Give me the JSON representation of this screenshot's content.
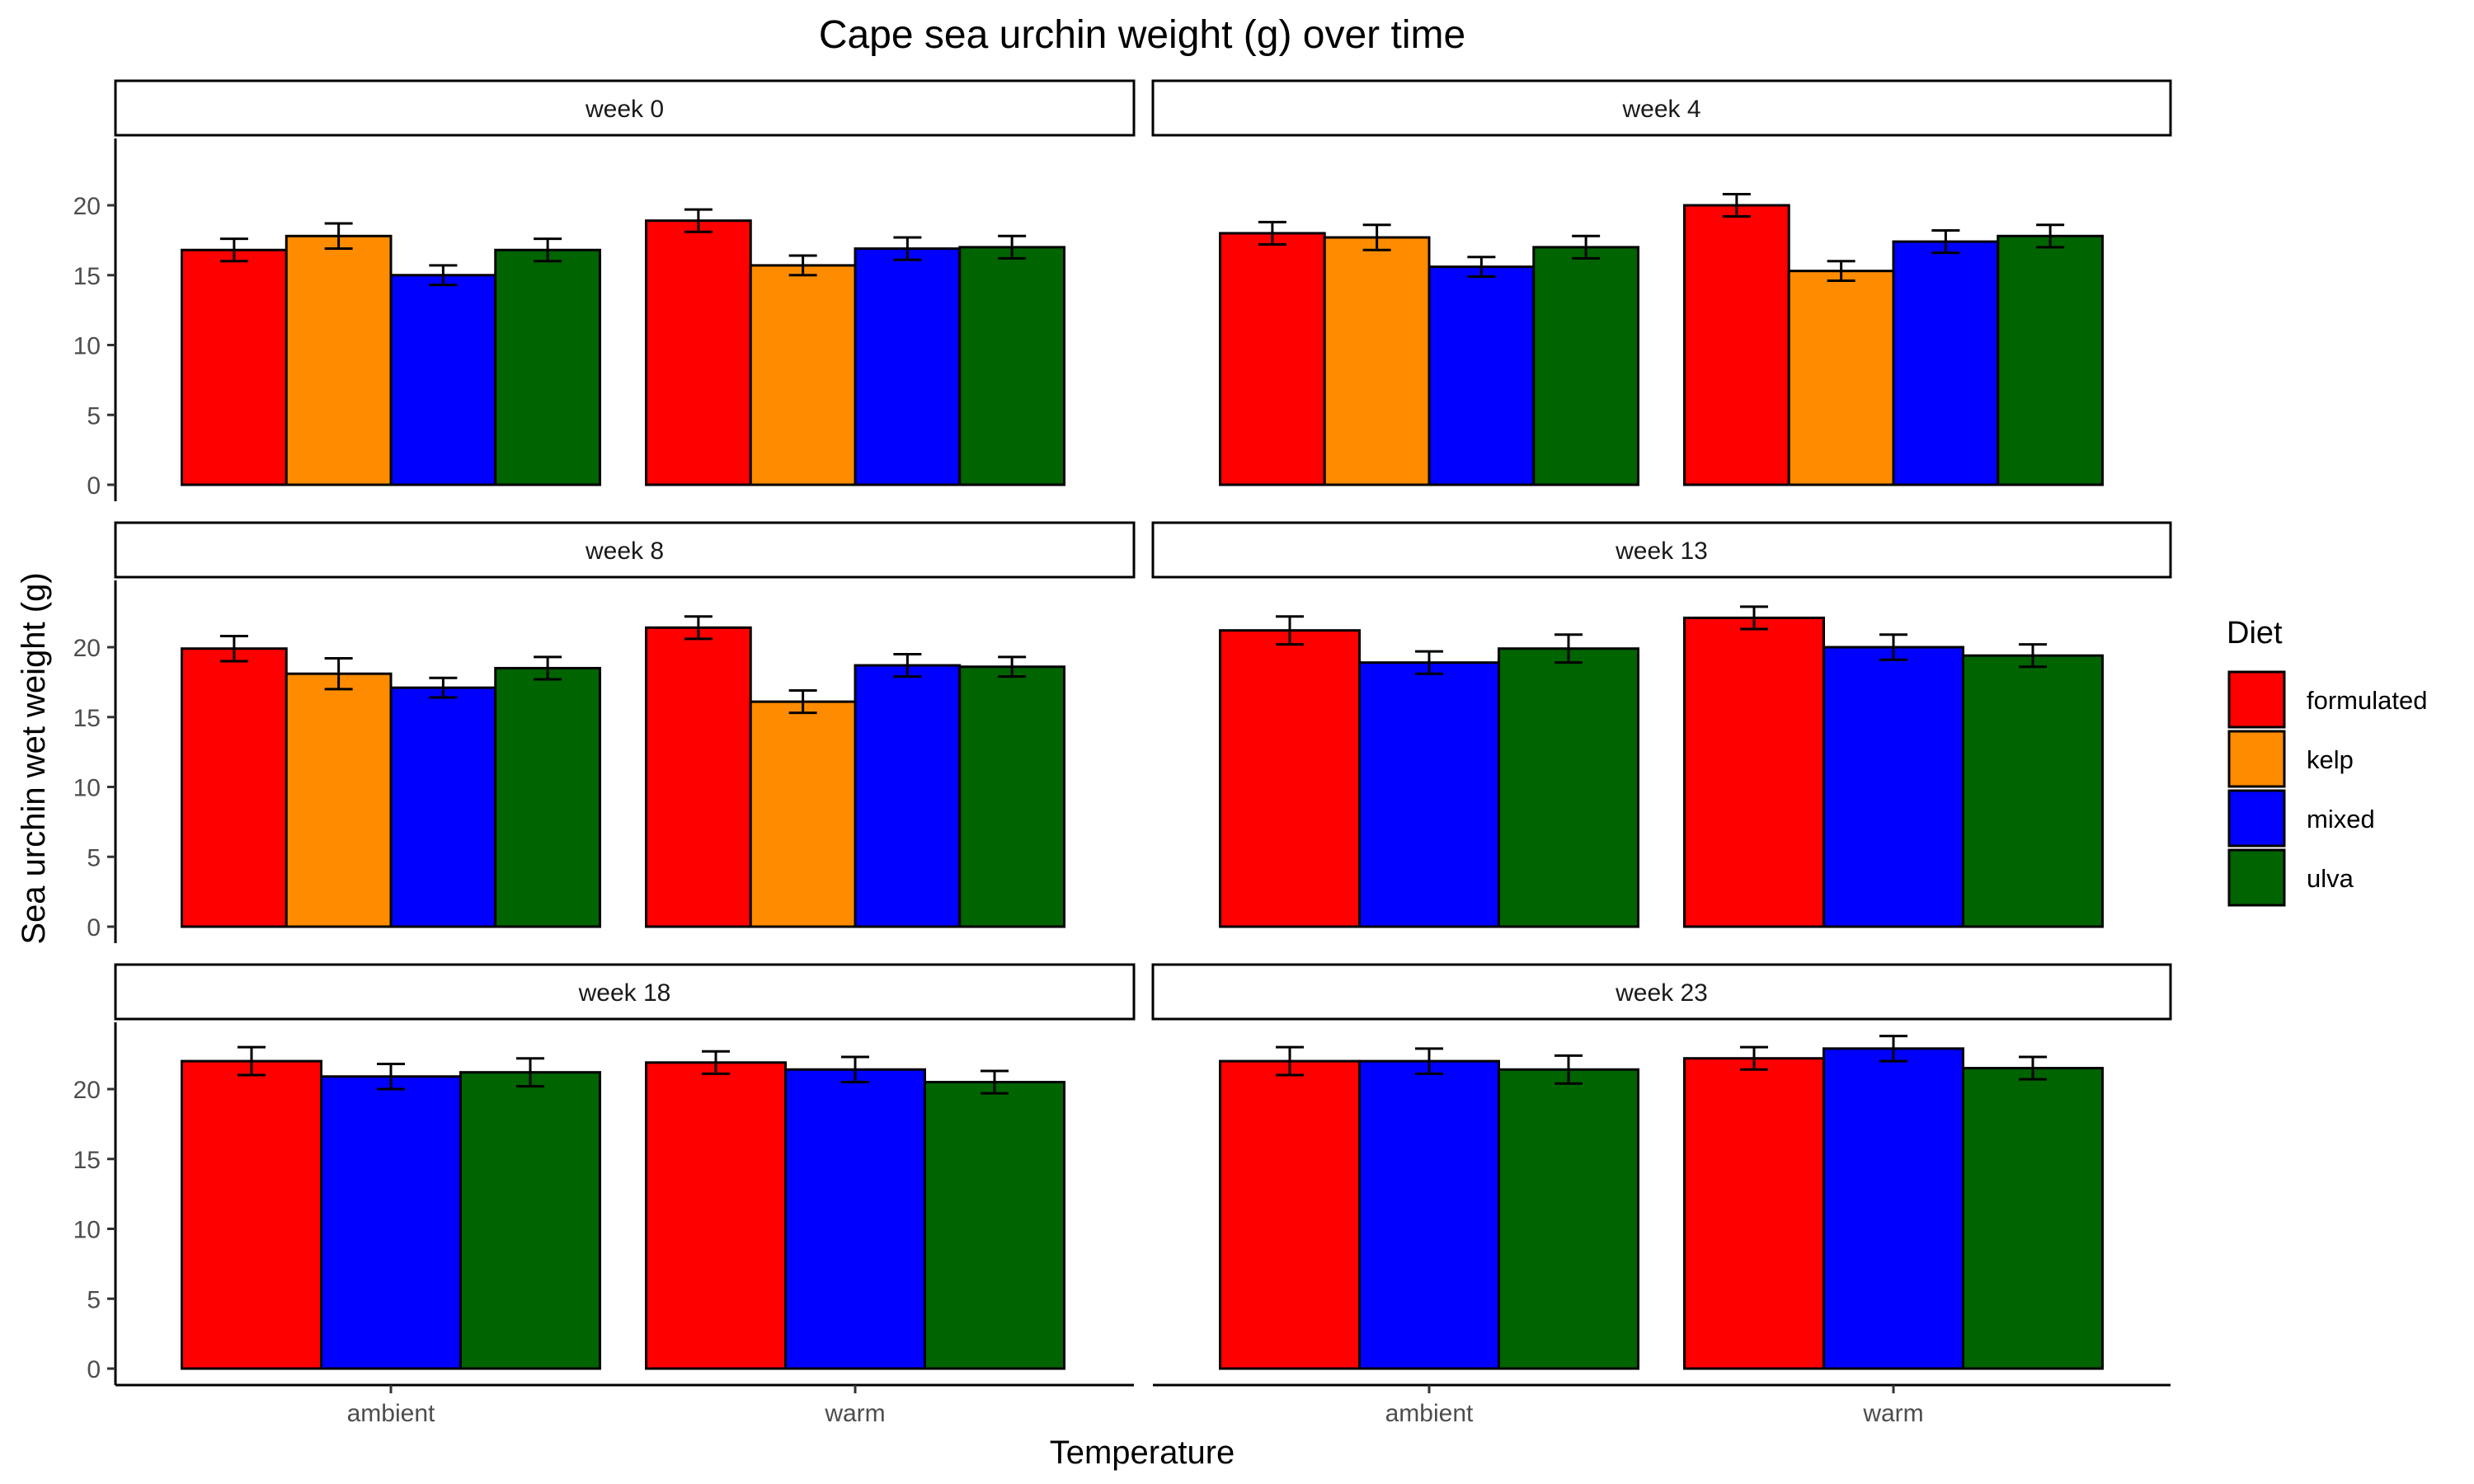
{
  "chart_data": {
    "type": "bar",
    "title": "Cape sea urchin weight (g) over time",
    "xlabel": "Temperature",
    "ylabel": "Sea urchin wet weight (g)",
    "ylim": [
      0,
      24
    ],
    "yticks": [
      0,
      5,
      10,
      15,
      20
    ],
    "legend": {
      "title": "Diet",
      "position": "right",
      "items": [
        {
          "name": "formulated",
          "color": "#ff0000"
        },
        {
          "name": "kelp",
          "color": "#ff8c00"
        },
        {
          "name": "mixed",
          "color": "#0000ff"
        },
        {
          "name": "ulva",
          "color": "#006400"
        }
      ]
    },
    "panels": [
      {
        "label": "week 0",
        "groups": [
          {
            "temperature": "ambient",
            "bars": [
              {
                "diet": "formulated",
                "value": 16.8,
                "error": 0.8
              },
              {
                "diet": "kelp",
                "value": 17.8,
                "error": 0.9
              },
              {
                "diet": "mixed",
                "value": 15.0,
                "error": 0.7
              },
              {
                "diet": "ulva",
                "value": 16.8,
                "error": 0.8
              }
            ]
          },
          {
            "temperature": "warm",
            "bars": [
              {
                "diet": "formulated",
                "value": 18.9,
                "error": 0.8
              },
              {
                "diet": "kelp",
                "value": 15.7,
                "error": 0.7
              },
              {
                "diet": "mixed",
                "value": 16.9,
                "error": 0.8
              },
              {
                "diet": "ulva",
                "value": 17.0,
                "error": 0.8
              }
            ]
          }
        ]
      },
      {
        "label": "week 4",
        "groups": [
          {
            "temperature": "ambient",
            "bars": [
              {
                "diet": "formulated",
                "value": 18.0,
                "error": 0.8
              },
              {
                "diet": "kelp",
                "value": 17.7,
                "error": 0.9
              },
              {
                "diet": "mixed",
                "value": 15.6,
                "error": 0.7
              },
              {
                "diet": "ulva",
                "value": 17.0,
                "error": 0.8
              }
            ]
          },
          {
            "temperature": "warm",
            "bars": [
              {
                "diet": "formulated",
                "value": 20.0,
                "error": 0.8
              },
              {
                "diet": "kelp",
                "value": 15.3,
                "error": 0.7
              },
              {
                "diet": "mixed",
                "value": 17.4,
                "error": 0.8
              },
              {
                "diet": "ulva",
                "value": 17.8,
                "error": 0.8
              }
            ]
          }
        ]
      },
      {
        "label": "week 8",
        "groups": [
          {
            "temperature": "ambient",
            "bars": [
              {
                "diet": "formulated",
                "value": 19.9,
                "error": 0.9
              },
              {
                "diet": "kelp",
                "value": 18.1,
                "error": 1.1
              },
              {
                "diet": "mixed",
                "value": 17.1,
                "error": 0.7
              },
              {
                "diet": "ulva",
                "value": 18.5,
                "error": 0.8
              }
            ]
          },
          {
            "temperature": "warm",
            "bars": [
              {
                "diet": "formulated",
                "value": 21.4,
                "error": 0.8
              },
              {
                "diet": "kelp",
                "value": 16.1,
                "error": 0.8
              },
              {
                "diet": "mixed",
                "value": 18.7,
                "error": 0.8
              },
              {
                "diet": "ulva",
                "value": 18.6,
                "error": 0.7
              }
            ]
          }
        ]
      },
      {
        "label": "week 13",
        "groups": [
          {
            "temperature": "ambient",
            "bars": [
              {
                "diet": "formulated",
                "value": 21.2,
                "error": 1.0
              },
              {
                "diet": "mixed",
                "value": 18.9,
                "error": 0.8
              },
              {
                "diet": "ulva",
                "value": 19.9,
                "error": 1.0
              }
            ]
          },
          {
            "temperature": "warm",
            "bars": [
              {
                "diet": "formulated",
                "value": 22.1,
                "error": 0.8
              },
              {
                "diet": "mixed",
                "value": 20.0,
                "error": 0.9
              },
              {
                "diet": "ulva",
                "value": 19.4,
                "error": 0.8
              }
            ]
          }
        ]
      },
      {
        "label": "week 18",
        "groups": [
          {
            "temperature": "ambient",
            "bars": [
              {
                "diet": "formulated",
                "value": 22.0,
                "error": 1.0
              },
              {
                "diet": "mixed",
                "value": 20.9,
                "error": 0.9
              },
              {
                "diet": "ulva",
                "value": 21.2,
                "error": 1.0
              }
            ]
          },
          {
            "temperature": "warm",
            "bars": [
              {
                "diet": "formulated",
                "value": 21.9,
                "error": 0.8
              },
              {
                "diet": "mixed",
                "value": 21.4,
                "error": 0.9
              },
              {
                "diet": "ulva",
                "value": 20.5,
                "error": 0.8
              }
            ]
          }
        ]
      },
      {
        "label": "week 23",
        "groups": [
          {
            "temperature": "ambient",
            "bars": [
              {
                "diet": "formulated",
                "value": 22.0,
                "error": 1.0
              },
              {
                "diet": "mixed",
                "value": 22.0,
                "error": 0.9
              },
              {
                "diet": "ulva",
                "value": 21.4,
                "error": 1.0
              }
            ]
          },
          {
            "temperature": "warm",
            "bars": [
              {
                "diet": "formulated",
                "value": 22.2,
                "error": 0.8
              },
              {
                "diet": "mixed",
                "value": 22.9,
                "error": 0.9
              },
              {
                "diet": "ulva",
                "value": 21.5,
                "error": 0.8
              }
            ]
          }
        ]
      }
    ]
  }
}
